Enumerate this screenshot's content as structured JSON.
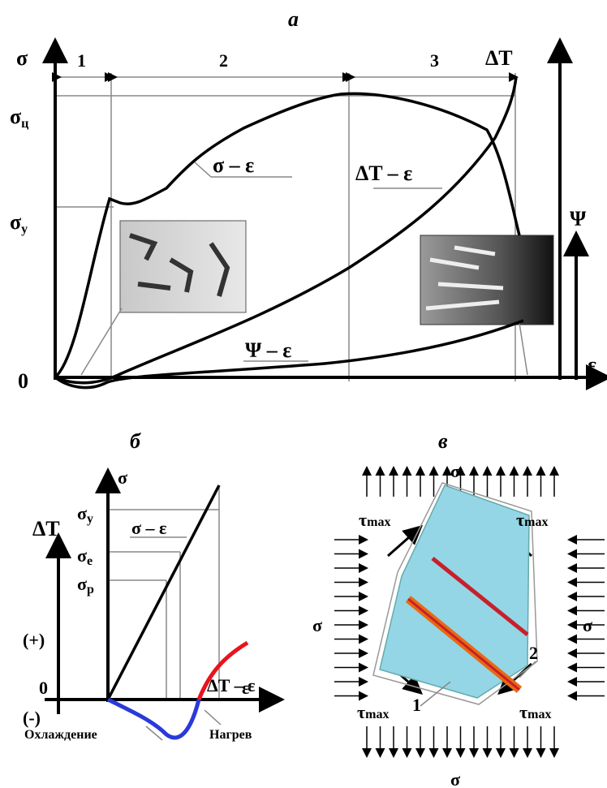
{
  "panels": [
    {
      "label": "а",
      "axes": {
        "left": "σ",
        "right": "ΔT",
        "psi": "Ψ",
        "x": "ε",
        "origin": "0"
      },
      "stages": [
        "1",
        "2",
        "3"
      ],
      "levels": [
        {
          "symbol": "σ",
          "sub": "ц"
        },
        {
          "symbol": "σ",
          "sub": "y"
        }
      ],
      "curves": [
        "σ – ε",
        "ΔT – ε",
        "Ψ – ε"
      ]
    },
    {
      "label": "б",
      "axes": {
        "left": "ΔT",
        "main": "σ",
        "x": "ε"
      },
      "levels": [
        {
          "symbol": "σ",
          "sub": "y"
        },
        {
          "symbol": "σ",
          "sub": "e"
        },
        {
          "symbol": "σ",
          "sub": "p"
        }
      ],
      "signs": [
        "(+)",
        "0",
        "(-)"
      ],
      "curves": [
        "σ – ε",
        "ΔT – ε"
      ],
      "zones": [
        "Охлаждение",
        "Нагрев"
      ]
    },
    {
      "label": "в",
      "stress": "σ",
      "shear": {
        "symbol": "τ",
        "sub": "max"
      },
      "bands": [
        "1",
        "2"
      ]
    }
  ]
}
